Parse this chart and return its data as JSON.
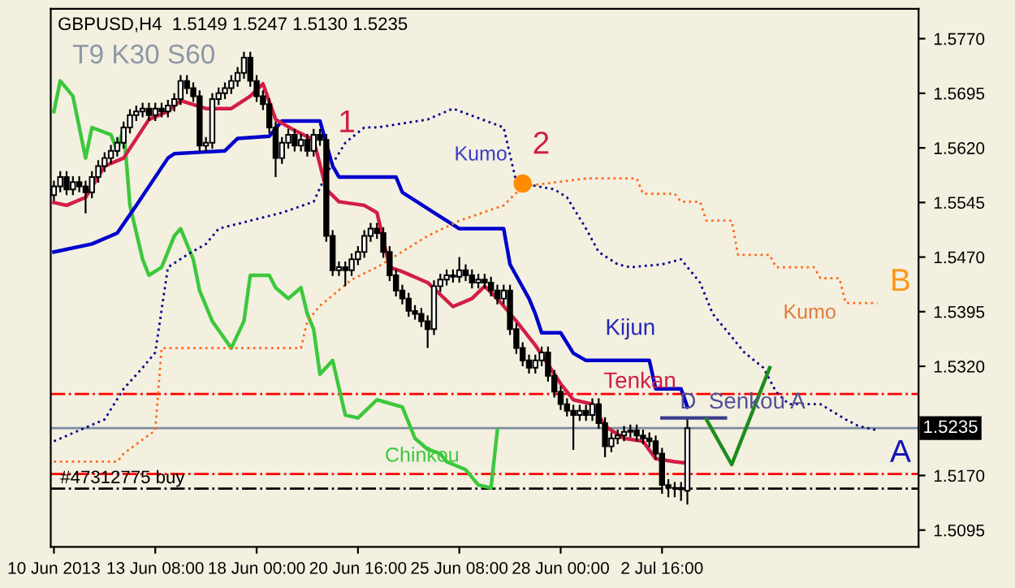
{
  "chart_data": {
    "type": "candlestick",
    "title": "GBPUSD,H4  1.5149 1.5247 1.5130 1.5235",
    "subtitle": "T9 K30 S60",
    "categories": [
      "10 Jun 2013",
      null,
      null,
      null,
      null,
      null,
      null,
      null,
      null,
      null,
      null,
      null,
      null,
      null,
      null,
      null,
      "13 Jun 08:00",
      null,
      null,
      null,
      null,
      null,
      null,
      null,
      null,
      null,
      null,
      null,
      null,
      null,
      null,
      null,
      "18 Jun 00:00",
      null,
      null,
      null,
      null,
      null,
      null,
      null,
      null,
      null,
      null,
      null,
      null,
      null,
      null,
      null,
      "20 Jun 16:00",
      null,
      null,
      null,
      null,
      null,
      null,
      null,
      null,
      null,
      null,
      null,
      null,
      null,
      null,
      null,
      "25 Jun 08:00",
      null,
      null,
      null,
      null,
      null,
      null,
      null,
      null,
      null,
      null,
      null,
      null,
      null,
      null,
      null,
      "28 Jun 00:00",
      null,
      null,
      null,
      null,
      null,
      null,
      null,
      null,
      null,
      null,
      null,
      null,
      null,
      null,
      null,
      "2 Jul 16:00",
      null,
      null,
      null,
      null,
      null,
      null,
      null,
      null,
      null,
      null,
      null,
      null,
      null,
      null,
      null,
      null,
      null,
      null,
      null,
      null,
      null,
      null,
      null,
      null,
      null,
      null,
      null,
      null,
      null,
      null,
      null,
      null,
      null,
      null,
      null,
      null,
      null,
      null,
      null,
      null
    ],
    "ohlc": [
      [
        1.5555,
        1.5575,
        1.5547,
        1.5567
      ],
      [
        1.5567,
        1.5588,
        1.5559,
        1.558
      ],
      [
        1.558,
        1.5588,
        1.5555,
        1.5563
      ],
      [
        1.5563,
        1.5581,
        1.5555,
        1.5573
      ],
      [
        1.5573,
        1.5581,
        1.5559,
        1.5567
      ],
      [
        1.5567,
        1.5575,
        1.553,
        1.5559
      ],
      [
        1.5559,
        1.5588,
        1.5551,
        1.558
      ],
      [
        1.558,
        1.5603,
        1.5572,
        1.5595
      ],
      [
        1.5595,
        1.5614,
        1.5587,
        1.5606
      ],
      [
        1.5606,
        1.5624,
        1.5598,
        1.5616
      ],
      [
        1.5616,
        1.5635,
        1.5608,
        1.5627
      ],
      [
        1.5627,
        1.5656,
        1.5619,
        1.5648
      ],
      [
        1.5648,
        1.5673,
        1.564,
        1.5665
      ],
      [
        1.5665,
        1.5678,
        1.5657,
        1.567
      ],
      [
        1.567,
        1.5682,
        1.5662,
        1.5674
      ],
      [
        1.5674,
        1.5682,
        1.5657,
        1.5665
      ],
      [
        1.5665,
        1.5682,
        1.5657,
        1.5674
      ],
      [
        1.5674,
        1.5682,
        1.5662,
        1.567
      ],
      [
        1.567,
        1.5686,
        1.5662,
        1.5678
      ],
      [
        1.5678,
        1.5695,
        1.567,
        1.5687
      ],
      [
        1.5687,
        1.572,
        1.5679,
        1.5712
      ],
      [
        1.5712,
        1.572,
        1.5694,
        1.5702
      ],
      [
        1.5702,
        1.571,
        1.5683,
        1.5691
      ],
      [
        1.5691,
        1.5699,
        1.5615,
        1.5623
      ],
      [
        1.5623,
        1.5635,
        1.5615,
        1.5627
      ],
      [
        1.5627,
        1.5695,
        1.5619,
        1.5687
      ],
      [
        1.5687,
        1.5703,
        1.5679,
        1.5695
      ],
      [
        1.5695,
        1.571,
        1.5687,
        1.5702
      ],
      [
        1.5702,
        1.572,
        1.5694,
        1.5712
      ],
      [
        1.5712,
        1.5731,
        1.5704,
        1.5723
      ],
      [
        1.5723,
        1.5752,
        1.5715,
        1.5744
      ],
      [
        1.5744,
        1.5752,
        1.5704,
        1.5712
      ],
      [
        1.5712,
        1.572,
        1.5683,
        1.5691
      ],
      [
        1.5691,
        1.5699,
        1.5672,
        1.568
      ],
      [
        1.568,
        1.5688,
        1.564,
        1.5648
      ],
      [
        1.5648,
        1.5656,
        1.558,
        1.5606
      ],
      [
        1.5606,
        1.5635,
        1.5598,
        1.5627
      ],
      [
        1.5627,
        1.5646,
        1.5619,
        1.5638
      ],
      [
        1.5638,
        1.5646,
        1.5615,
        1.5623
      ],
      [
        1.5623,
        1.5639,
        1.5615,
        1.5631
      ],
      [
        1.5631,
        1.5639,
        1.5608,
        1.5616
      ],
      [
        1.5616,
        1.5646,
        1.5608,
        1.5638
      ],
      [
        1.5638,
        1.5646,
        1.5623,
        1.5631
      ],
      [
        1.5631,
        1.5639,
        1.5491,
        1.5499
      ],
      [
        1.5499,
        1.5507,
        1.5444,
        1.5452
      ],
      [
        1.5452,
        1.5464,
        1.5444,
        1.5456
      ],
      [
        1.5456,
        1.5464,
        1.543,
        1.5452
      ],
      [
        1.5452,
        1.5475,
        1.5444,
        1.5467
      ],
      [
        1.5467,
        1.5485,
        1.5459,
        1.5477
      ],
      [
        1.5477,
        1.5507,
        1.5469,
        1.5499
      ],
      [
        1.5499,
        1.5517,
        1.5491,
        1.5509
      ],
      [
        1.5509,
        1.5517,
        1.5495,
        1.5503
      ],
      [
        1.5503,
        1.5511,
        1.5469,
        1.5477
      ],
      [
        1.5477,
        1.5485,
        1.5437,
        1.5445
      ],
      [
        1.5445,
        1.5453,
        1.5416,
        1.5424
      ],
      [
        1.5424,
        1.5432,
        1.5405,
        1.5413
      ],
      [
        1.5413,
        1.5421,
        1.5388,
        1.5396
      ],
      [
        1.5396,
        1.5404,
        1.5384,
        1.5392
      ],
      [
        1.5392,
        1.54,
        1.5374,
        1.5382
      ],
      [
        1.5382,
        1.539,
        1.5345,
        1.5371
      ],
      [
        1.5371,
        1.5438,
        1.5363,
        1.543
      ],
      [
        1.543,
        1.5447,
        1.5422,
        1.5439
      ],
      [
        1.5439,
        1.5453,
        1.5431,
        1.5445
      ],
      [
        1.5445,
        1.5453,
        1.5435,
        1.5443
      ],
      [
        1.5443,
        1.547,
        1.5435,
        1.5452
      ],
      [
        1.5452,
        1.546,
        1.5437,
        1.5445
      ],
      [
        1.5445,
        1.5453,
        1.5427,
        1.5435
      ],
      [
        1.5435,
        1.5447,
        1.5427,
        1.5439
      ],
      [
        1.5439,
        1.5447,
        1.5427,
        1.5435
      ],
      [
        1.5435,
        1.5443,
        1.5416,
        1.5424
      ],
      [
        1.5424,
        1.5432,
        1.5405,
        1.5413
      ],
      [
        1.5413,
        1.5432,
        1.5405,
        1.5424
      ],
      [
        1.5424,
        1.5432,
        1.5363,
        1.5371
      ],
      [
        1.5371,
        1.5379,
        1.5337,
        1.5345
      ],
      [
        1.5345,
        1.5353,
        1.532,
        1.5328
      ],
      [
        1.5328,
        1.5336,
        1.531,
        1.5318
      ],
      [
        1.5318,
        1.5336,
        1.531,
        1.5328
      ],
      [
        1.5328,
        1.5347,
        1.532,
        1.5339
      ],
      [
        1.5339,
        1.5347,
        1.5299,
        1.5307
      ],
      [
        1.5307,
        1.5315,
        1.5277,
        1.5285
      ],
      [
        1.5285,
        1.5293,
        1.526,
        1.5268
      ],
      [
        1.5268,
        1.5276,
        1.5251,
        1.5259
      ],
      [
        1.5259,
        1.5267,
        1.5205,
        1.5253
      ],
      [
        1.5253,
        1.5267,
        1.5245,
        1.5259
      ],
      [
        1.5259,
        1.5267,
        1.5245,
        1.5253
      ],
      [
        1.5253,
        1.5276,
        1.5245,
        1.5268
      ],
      [
        1.5268,
        1.5276,
        1.5234,
        1.5242
      ],
      [
        1.5242,
        1.525,
        1.5195,
        1.521
      ],
      [
        1.521,
        1.5229,
        1.5202,
        1.5221
      ],
      [
        1.5221,
        1.5233,
        1.5213,
        1.5225
      ],
      [
        1.5225,
        1.5238,
        1.5217,
        1.523
      ],
      [
        1.523,
        1.524,
        1.5222,
        1.5232
      ],
      [
        1.5232,
        1.524,
        1.5217,
        1.5225
      ],
      [
        1.5225,
        1.5233,
        1.5213,
        1.5221
      ],
      [
        1.5221,
        1.5229,
        1.5209,
        1.5217
      ],
      [
        1.5217,
        1.5225,
        1.5192,
        1.52
      ],
      [
        1.52,
        1.5208,
        1.5145,
        1.5157
      ],
      [
        1.5157,
        1.5165,
        1.514,
        1.5153
      ],
      [
        1.5153,
        1.5161,
        1.514,
        1.5153
      ],
      [
        1.5153,
        1.5161,
        1.5135,
        1.5151
      ],
      [
        1.5149,
        1.5247,
        1.513,
        1.5235
      ],
      null,
      null,
      null,
      null,
      null,
      null,
      null,
      null,
      null,
      null,
      null,
      null,
      null,
      null,
      null,
      null,
      null,
      null,
      null,
      null,
      null,
      null,
      null,
      null,
      null,
      null,
      null,
      null,
      null,
      null,
      null,
      null,
      null,
      null,
      null,
      null
    ],
    "series": [
      {
        "type": "line",
        "color": "#3cc83c",
        "line_style": "solid",
        "values": [
          1.567,
          1.5712,
          null,
          1.5691,
          null,
          1.5606,
          1.5648,
          null,
          null,
          1.5638,
          1.5616,
          1.5648,
          1.5541,
          null,
          1.5467,
          1.5445,
          null,
          1.5456,
          null,
          1.5499,
          1.5509,
          null,
          1.5467,
          1.5424,
          null,
          1.5382,
          null,
          null,
          1.5345,
          null,
          1.5382,
          1.5445,
          null,
          null,
          1.5445,
          1.5428,
          null,
          1.5413,
          null,
          1.5428,
          1.5392,
          1.5371,
          1.5309,
          null,
          1.5328,
          null,
          1.5253,
          null,
          1.5249,
          null,
          null,
          1.5274,
          null,
          null,
          null,
          1.5264,
          null,
          1.5221,
          null,
          1.5206,
          null,
          1.52,
          1.5189,
          null,
          null,
          1.5178,
          null,
          1.5157,
          null,
          1.5153,
          1.5232,
          null,
          null,
          null,
          null,
          null,
          null,
          null,
          null,
          null,
          null,
          null,
          null,
          null,
          null,
          null,
          null,
          null,
          null,
          null,
          null,
          null,
          null,
          null,
          null,
          null,
          null,
          null,
          null,
          null,
          null,
          null,
          null,
          null,
          null,
          null,
          null,
          null,
          null,
          null,
          null,
          null,
          null,
          null,
          null,
          null,
          null,
          null,
          null,
          null,
          null,
          null,
          null,
          null,
          null,
          null,
          null,
          null,
          null,
          null,
          null,
          null,
          null,
          null,
          null,
          null,
          null
        ]
      },
      {
        "type": "line",
        "color": "#0000cc",
        "line_style": "solid",
        "values": [
          1.5477,
          null,
          null,
          null,
          null,
          null,
          1.5488,
          null,
          null,
          null,
          1.5503,
          null,
          null,
          1.5541,
          null,
          null,
          null,
          null,
          1.5606,
          1.5612,
          null,
          null,
          null,
          null,
          null,
          null,
          null,
          1.5616,
          null,
          1.5633,
          null,
          null,
          null,
          null,
          1.5636,
          null,
          1.5657,
          null,
          null,
          null,
          null,
          null,
          1.5657,
          null,
          1.5595,
          1.558,
          null,
          null,
          null,
          null,
          null,
          null,
          null,
          null,
          1.558,
          1.5559,
          null,
          null,
          null,
          null,
          1.5531,
          null,
          null,
          null,
          1.5509,
          null,
          null,
          null,
          null,
          null,
          null,
          1.5509,
          1.546,
          null,
          null,
          1.5413,
          1.5392,
          1.5366,
          null,
          null,
          1.5366,
          null,
          1.5338,
          null,
          1.5328,
          null,
          null,
          null,
          null,
          null,
          null,
          null,
          null,
          null,
          1.5328,
          1.5289,
          null,
          null,
          null,
          1.5289,
          1.5264,
          null,
          null,
          null,
          null,
          null,
          null,
          null,
          null,
          null,
          null,
          null,
          null,
          null,
          null,
          null,
          null,
          null,
          null,
          null,
          null,
          null,
          null,
          null,
          null,
          null,
          null,
          null,
          null,
          null,
          null,
          null,
          null,
          null,
          null,
          null,
          null
        ]
      },
      {
        "type": "line",
        "color": "#d21e46",
        "line_style": "solid",
        "values": [
          1.5545,
          null,
          1.5541,
          null,
          null,
          1.5552,
          null,
          null,
          1.5595,
          null,
          null,
          1.5606,
          null,
          null,
          null,
          1.5659,
          null,
          null,
          1.567,
          null,
          1.5685,
          null,
          null,
          null,
          1.5674,
          null,
          null,
          null,
          1.5674,
          null,
          null,
          1.5691,
          null,
          1.5708,
          null,
          1.5659,
          null,
          null,
          1.5644,
          null,
          null,
          1.5631,
          null,
          1.5563,
          null,
          1.5546,
          null,
          null,
          null,
          1.5541,
          null,
          1.5531,
          null,
          1.5456,
          null,
          1.545,
          null,
          null,
          null,
          1.5435,
          null,
          null,
          null,
          1.5402,
          null,
          null,
          1.5413,
          null,
          1.543,
          null,
          1.5413,
          null,
          null,
          1.5382,
          null,
          null,
          1.5349,
          null,
          null,
          null,
          1.5296,
          null,
          1.5274,
          null,
          null,
          1.5268,
          null,
          1.5238,
          null,
          null,
          1.5221,
          null,
          null,
          1.5217,
          null,
          1.5193,
          null,
          null,
          1.5189,
          null,
          1.5187,
          null,
          null,
          null,
          null,
          null,
          null,
          null,
          null,
          null,
          null,
          null,
          null,
          null,
          null,
          null,
          null,
          null,
          null,
          null,
          null,
          null,
          null,
          null,
          null,
          null,
          null,
          null,
          null,
          null,
          null,
          null,
          null,
          null,
          null,
          null,
          null
        ]
      },
      {
        "type": "line",
        "color": "#00008b",
        "line_style": "dotted",
        "values": [
          1.5217,
          null,
          null,
          null,
          1.5232,
          null,
          null,
          null,
          1.5247,
          null,
          null,
          1.5289,
          null,
          null,
          1.5318,
          null,
          1.5339,
          null,
          1.5456,
          null,
          null,
          1.5473,
          null,
          null,
          1.5488,
          null,
          1.5509,
          null,
          null,
          null,
          null,
          1.552,
          null,
          null,
          null,
          null,
          1.5531,
          null,
          null,
          null,
          null,
          1.5546,
          null,
          1.5584,
          null,
          null,
          1.5627,
          null,
          null,
          1.5648,
          null,
          1.5648,
          null,
          null,
          null,
          null,
          null,
          null,
          null,
          1.5659,
          null,
          null,
          null,
          1.5674,
          null,
          null,
          null,
          null,
          null,
          null,
          null,
          1.5648,
          null,
          1.5573,
          1.5571,
          null,
          null,
          null,
          null,
          1.5563,
          null,
          1.5552,
          null,
          null,
          1.5509,
          null,
          1.5477,
          null,
          null,
          1.546,
          null,
          1.5456,
          null,
          null,
          null,
          null,
          1.546,
          null,
          null,
          1.5467,
          null,
          null,
          1.5435,
          null,
          1.5392,
          null,
          1.5371,
          null,
          null,
          1.5339,
          null,
          null,
          1.5318,
          null,
          1.5285,
          null,
          1.5268,
          null,
          null,
          null,
          null,
          1.5268,
          null,
          null,
          null,
          1.5247,
          null,
          1.5238,
          null,
          null,
          1.5232,
          null,
          null,
          null,
          null,
          null,
          null
        ]
      },
      {
        "type": "line",
        "color": "#ff6a1a",
        "line_style": "dotted",
        "values": [
          1.5189,
          null,
          null,
          null,
          null,
          null,
          null,
          null,
          null,
          null,
          1.5189,
          1.52,
          null,
          null,
          null,
          null,
          1.5232,
          1.5345,
          null,
          null,
          null,
          null,
          null,
          null,
          null,
          null,
          null,
          null,
          null,
          null,
          null,
          null,
          null,
          null,
          null,
          null,
          null,
          null,
          null,
          1.5345,
          1.5382,
          null,
          1.5403,
          null,
          null,
          null,
          null,
          1.5439,
          null,
          null,
          null,
          1.5456,
          null,
          null,
          null,
          null,
          null,
          null,
          null,
          1.5499,
          null,
          null,
          null,
          null,
          1.552,
          null,
          null,
          null,
          null,
          null,
          null,
          1.5541,
          null,
          null,
          1.5567,
          null,
          null,
          null,
          null,
          null,
          null,
          null,
          null,
          null,
          1.5578,
          null,
          null,
          null,
          null,
          null,
          null,
          null,
          1.5578,
          1.5557,
          null,
          null,
          null,
          null,
          1.5557,
          1.5546,
          null,
          null,
          1.5546,
          1.552,
          null,
          null,
          null,
          1.552,
          1.5473,
          null,
          null,
          null,
          null,
          1.5473,
          1.5456,
          null,
          null,
          null,
          null,
          null,
          1.5456,
          1.5441,
          null,
          null,
          1.5441,
          1.5407,
          null,
          null,
          null,
          null,
          1.5407,
          null,
          null,
          null,
          null,
          null,
          null
        ]
      },
      {
        "type": "line",
        "color": "#3c3c8c",
        "line_style": "solid",
        "values": [
          null,
          null,
          null,
          null,
          null,
          null,
          null,
          null,
          null,
          null,
          null,
          null,
          null,
          null,
          null,
          null,
          null,
          null,
          null,
          null,
          null,
          null,
          null,
          null,
          null,
          null,
          null,
          null,
          null,
          null,
          null,
          null,
          null,
          null,
          null,
          null,
          null,
          null,
          null,
          null,
          null,
          null,
          null,
          null,
          null,
          null,
          null,
          null,
          null,
          null,
          null,
          null,
          null,
          null,
          null,
          null,
          null,
          null,
          null,
          null,
          null,
          null,
          null,
          null,
          null,
          null,
          null,
          null,
          null,
          null,
          null,
          null,
          null,
          null,
          null,
          null,
          null,
          null,
          null,
          null,
          null,
          null,
          null,
          null,
          null,
          null,
          null,
          null,
          null,
          null,
          null,
          null,
          null,
          null,
          null,
          null,
          1.5249,
          null,
          null,
          null,
          null,
          null,
          null,
          null,
          null,
          null,
          1.5249,
          null,
          null,
          null,
          null,
          null,
          null,
          null,
          null,
          null,
          null,
          null,
          null,
          null,
          null,
          null,
          null,
          null,
          null,
          null,
          null,
          null,
          null,
          null,
          null,
          null,
          null,
          null,
          null,
          null,
          null
        ]
      },
      {
        "type": "line",
        "color": "#1e8c1e",
        "line_style": "solid",
        "values": [
          null,
          null,
          null,
          null,
          null,
          null,
          null,
          null,
          null,
          null,
          null,
          null,
          null,
          null,
          null,
          null,
          null,
          null,
          null,
          null,
          null,
          null,
          null,
          null,
          null,
          null,
          null,
          null,
          null,
          null,
          null,
          null,
          null,
          null,
          null,
          null,
          null,
          null,
          null,
          null,
          null,
          null,
          null,
          null,
          null,
          null,
          null,
          null,
          null,
          null,
          null,
          null,
          null,
          null,
          null,
          null,
          null,
          null,
          null,
          null,
          null,
          null,
          null,
          null,
          null,
          null,
          null,
          null,
          null,
          null,
          null,
          null,
          null,
          null,
          null,
          null,
          null,
          null,
          null,
          null,
          null,
          null,
          null,
          null,
          null,
          null,
          null,
          null,
          null,
          null,
          null,
          null,
          null,
          null,
          null,
          null,
          null,
          null,
          null,
          null,
          null,
          null,
          null,
          1.5247,
          null,
          null,
          null,
          1.5185,
          null,
          null,
          null,
          null,
          null,
          1.5318,
          null,
          null,
          null,
          null,
          null,
          null,
          null,
          null,
          null,
          null,
          null,
          null,
          null,
          null,
          null,
          null,
          null,
          null,
          null,
          null,
          null,
          null,
          null
        ]
      },
      {
        "type": "scatter",
        "color": "#ff8c00",
        "marker": "circle",
        "values": [
          null,
          null,
          null,
          null,
          null,
          null,
          null,
          null,
          null,
          null,
          null,
          null,
          null,
          null,
          null,
          null,
          null,
          null,
          null,
          null,
          null,
          null,
          null,
          null,
          null,
          null,
          null,
          null,
          null,
          null,
          null,
          null,
          null,
          null,
          null,
          null,
          null,
          null,
          null,
          null,
          null,
          null,
          null,
          null,
          null,
          null,
          null,
          null,
          null,
          null,
          null,
          null,
          null,
          null,
          null,
          null,
          null,
          null,
          null,
          null,
          null,
          null,
          null,
          null,
          null,
          null,
          null,
          null,
          null,
          null,
          null,
          null,
          null,
          null,
          1.5571,
          null,
          null,
          null,
          null,
          null,
          null,
          null,
          null,
          null,
          null,
          null,
          null,
          null,
          null,
          null,
          null,
          null,
          null,
          null,
          null,
          null,
          null,
          null,
          null,
          null,
          null,
          null,
          null,
          null,
          null,
          null,
          null,
          null,
          null,
          null,
          null,
          null,
          null,
          null,
          null,
          null,
          null,
          null,
          null,
          null,
          null,
          null,
          null,
          null,
          null,
          null,
          null,
          null,
          null,
          null,
          null,
          null,
          null,
          null,
          null,
          null,
          null
        ]
      }
    ],
    "ref_lines": [
      {
        "axis": "y",
        "value": 1.5282,
        "color": "#ff0000",
        "line_style": "dashdot"
      },
      {
        "axis": "y",
        "value": 1.5235,
        "label": "1.5235",
        "color": "#7a8ca0",
        "line_style": "solid"
      },
      {
        "axis": "y",
        "value": 1.5172,
        "color": "#ff0000",
        "line_style": "dashdot"
      },
      {
        "axis": "y",
        "value": 1.5152,
        "color": "#000000",
        "line_style": "dashdot"
      }
    ],
    "annotations": [
      "1",
      "2",
      "Kumo",
      "Kijun",
      "Tenkan",
      "Chinkou",
      "D  Senkou A",
      "Kumo",
      "B",
      "A",
      "#47312775 buy"
    ],
    "ylim": [
      1.5072,
      1.5811
    ],
    "yticks": [
      {
        "value": 1.5095,
        "label": "1.5095"
      },
      {
        "value": 1.517,
        "label": "1.5170"
      },
      {
        "value": 1.532,
        "label": "1.5320"
      },
      {
        "value": 1.5395,
        "label": "1.5395"
      },
      {
        "value": 1.547,
        "label": "1.5470"
      },
      {
        "value": 1.5545,
        "label": "1.5545"
      },
      {
        "value": 1.562,
        "label": "1.5620"
      },
      {
        "value": 1.5695,
        "label": "1.5695"
      },
      {
        "value": 1.577,
        "label": "1.5770"
      }
    ],
    "grid": false,
    "legend": false
  }
}
